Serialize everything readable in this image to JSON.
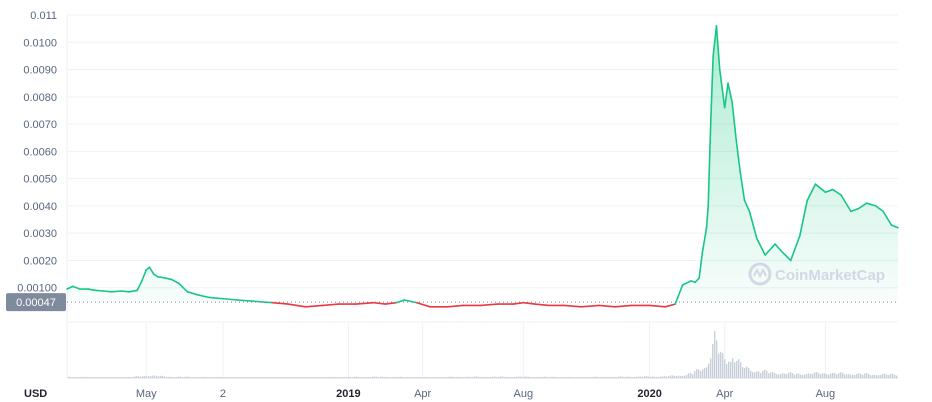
{
  "chart_data": {
    "type": "area",
    "currency_label": "USD",
    "baseline_label": "0.00047",
    "baseline_value": 0.00047,
    "watermark": "CoinMarketCap",
    "y_ticks": [
      "0.011",
      "0.0100",
      "0.0090",
      "0.0080",
      "0.0070",
      "0.0060",
      "0.0050",
      "0.0040",
      "0.0030",
      "0.0020",
      "0.00100"
    ],
    "y_tick_values": [
      0.011,
      0.01,
      0.009,
      0.008,
      0.007,
      0.006,
      0.005,
      0.004,
      0.003,
      0.002,
      0.001
    ],
    "ylim": [
      0.0,
      0.011
    ],
    "x_ticks": [
      {
        "label": "May",
        "bold": false,
        "date": "2018-05-01"
      },
      {
        "label": "2",
        "bold": false,
        "date": "2018-08-02"
      },
      {
        "label": "2019",
        "bold": true,
        "date": "2019-01-01"
      },
      {
        "label": "Apr",
        "bold": false,
        "date": "2019-04-01"
      },
      {
        "label": "Aug",
        "bold": false,
        "date": "2019-08-01"
      },
      {
        "label": "2020",
        "bold": true,
        "date": "2020-01-01"
      },
      {
        "label": "Apr",
        "bold": false,
        "date": "2020-04-01"
      },
      {
        "label": "Aug",
        "bold": false,
        "date": "2020-08-01"
      }
    ],
    "xlim": [
      "2018-01-25",
      "2020-10-28"
    ],
    "colors": {
      "above": "#16c784",
      "below": "#ea3943",
      "fill": "#16c784",
      "volume": "#c9cfd9",
      "badge": "#808a9d",
      "grid": "#eff2f5"
    },
    "series": [
      {
        "x": [
          "2018-01-25",
          "2018-02-01",
          "2018-02-10",
          "2018-02-20",
          "2018-03-01",
          "2018-03-10",
          "2018-03-20",
          "2018-04-01",
          "2018-04-10",
          "2018-04-20",
          "2018-04-25",
          "2018-05-01",
          "2018-05-05",
          "2018-05-10",
          "2018-05-15",
          "2018-05-20",
          "2018-05-25",
          "2018-06-01",
          "2018-06-10",
          "2018-06-20",
          "2018-07-01",
          "2018-07-15",
          "2018-08-01",
          "2018-08-20",
          "2018-09-10",
          "2018-10-01",
          "2018-10-20",
          "2018-11-10",
          "2018-12-01",
          "2018-12-20",
          "2019-01-10",
          "2019-02-01",
          "2019-02-15",
          "2019-02-28",
          "2019-03-10",
          "2019-03-25",
          "2019-04-10",
          "2019-05-01",
          "2019-05-20",
          "2019-06-10",
          "2019-07-01",
          "2019-07-20",
          "2019-08-01",
          "2019-08-15",
          "2019-09-01",
          "2019-09-20",
          "2019-10-10",
          "2019-11-01",
          "2019-11-20",
          "2019-12-10",
          "2020-01-01",
          "2020-01-20",
          "2020-02-01",
          "2020-02-10",
          "2020-02-20",
          "2020-02-25",
          "2020-03-01",
          "2020-03-05",
          "2020-03-10",
          "2020-03-12",
          "2020-03-15",
          "2020-03-18",
          "2020-03-22",
          "2020-03-26",
          "2020-04-01",
          "2020-04-05",
          "2020-04-10",
          "2020-04-15",
          "2020-04-20",
          "2020-04-25",
          "2020-05-01",
          "2020-05-10",
          "2020-05-20",
          "2020-06-01",
          "2020-06-10",
          "2020-06-20",
          "2020-07-01",
          "2020-07-10",
          "2020-07-20",
          "2020-08-01",
          "2020-08-10",
          "2020-08-20",
          "2020-09-01",
          "2020-09-10",
          "2020-09-20",
          "2020-10-01",
          "2020-10-10",
          "2020-10-20",
          "2020-10-28"
        ],
        "y": [
          0.00095,
          0.00105,
          0.00095,
          0.00095,
          0.0009,
          0.00088,
          0.00085,
          0.00088,
          0.00085,
          0.0009,
          0.0012,
          0.00165,
          0.00175,
          0.0015,
          0.0014,
          0.00138,
          0.00135,
          0.0013,
          0.00115,
          0.00085,
          0.00075,
          0.00065,
          0.0006,
          0.00055,
          0.0005,
          0.00045,
          0.0004,
          0.0003,
          0.00035,
          0.0004,
          0.0004,
          0.00045,
          0.0004,
          0.00045,
          0.00055,
          0.00045,
          0.0003,
          0.0003,
          0.00035,
          0.00035,
          0.0004,
          0.0004,
          0.00045,
          0.0004,
          0.00035,
          0.00035,
          0.0003,
          0.00035,
          0.0003,
          0.00035,
          0.00035,
          0.0003,
          0.0004,
          0.0011,
          0.00125,
          0.0012,
          0.00135,
          0.0023,
          0.0032,
          0.004,
          0.007,
          0.0095,
          0.0106,
          0.009,
          0.0076,
          0.0085,
          0.0078,
          0.0064,
          0.0052,
          0.0042,
          0.0038,
          0.0028,
          0.0022,
          0.0026,
          0.0023,
          0.002,
          0.0029,
          0.0042,
          0.0048,
          0.0045,
          0.0046,
          0.0044,
          0.0038,
          0.0039,
          0.0041,
          0.004,
          0.0038,
          0.0033,
          0.0032
        ]
      }
    ],
    "volume": {
      "x": [
        "2018-01-25",
        "2018-03-01",
        "2018-04-10",
        "2018-05-01",
        "2018-06-01",
        "2018-08-01",
        "2018-10-01",
        "2018-12-01",
        "2019-02-01",
        "2019-04-01",
        "2019-06-01",
        "2019-08-01",
        "2019-10-01",
        "2019-12-01",
        "2020-01-20",
        "2020-02-15",
        "2020-03-01",
        "2020-03-10",
        "2020-03-15",
        "2020-03-20",
        "2020-03-26",
        "2020-04-01",
        "2020-04-10",
        "2020-04-20",
        "2020-05-01",
        "2020-06-01",
        "2020-07-01",
        "2020-08-01",
        "2020-09-01",
        "2020-10-01",
        "2020-10-28"
      ],
      "y": [
        0.03,
        0.02,
        0.02,
        0.06,
        0.03,
        0.02,
        0.02,
        0.02,
        0.03,
        0.02,
        0.03,
        0.03,
        0.02,
        0.03,
        0.04,
        0.08,
        0.2,
        0.35,
        0.6,
        1.0,
        0.55,
        0.45,
        0.55,
        0.3,
        0.2,
        0.12,
        0.1,
        0.12,
        0.1,
        0.09,
        0.08
      ]
    }
  }
}
